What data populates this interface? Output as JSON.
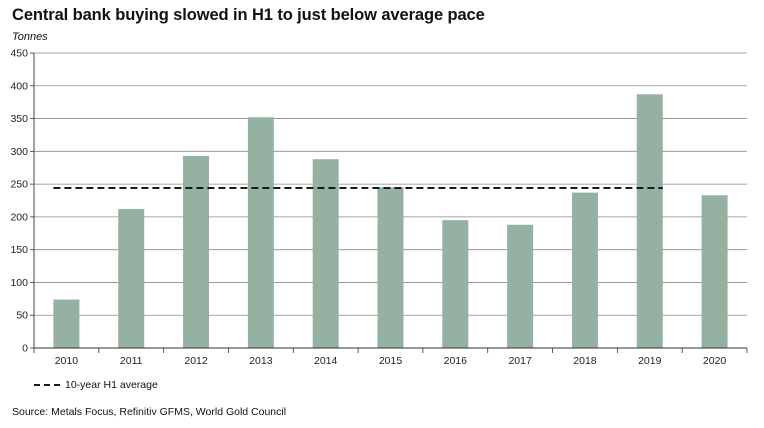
{
  "chart_data": {
    "type": "bar",
    "title": "Central bank buying slowed in H1 to just below average pace",
    "ylabel": "Tonnes",
    "xlabel": "",
    "categories": [
      "2010",
      "2011",
      "2012",
      "2013",
      "2014",
      "2015",
      "2016",
      "2017",
      "2018",
      "2019",
      "2020"
    ],
    "values": [
      74,
      212,
      293,
      352,
      288,
      245,
      195,
      188,
      237,
      387,
      233
    ],
    "ylim": [
      0,
      450
    ],
    "yticks": [
      0,
      50,
      100,
      150,
      200,
      250,
      300,
      350,
      400,
      450
    ],
    "grid": true,
    "average_line": {
      "label": "10-year H1 average",
      "value": 244
    },
    "bar_color": "#95b1a2",
    "source": "Source: Metals Focus, Refinitiv GFMS, World Gold Council"
  }
}
